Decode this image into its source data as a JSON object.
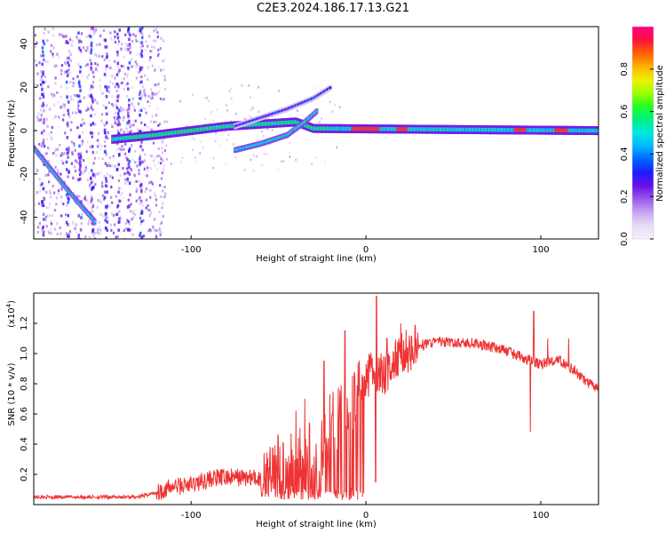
{
  "title": "C2E3.2024.186.17.13.G21",
  "colors": {
    "snr_line": "#ee3333",
    "axis": "#000000",
    "colormap": [
      "#f4f0f8",
      "#e8dcf6",
      "#c9a6f1",
      "#9b59ec",
      "#6a10e6",
      "#1d1cff",
      "#0066ff",
      "#00b8ff",
      "#00e8e0",
      "#00f080",
      "#22ff22",
      "#a0ff00",
      "#f0f000",
      "#ffb000",
      "#ff6000",
      "#ff1040",
      "#ff0080"
    ]
  },
  "chart_data": [
    {
      "type": "heatmap",
      "title": "C2E3.2024.186.17.13.G21",
      "xlabel": "Height of straight line (km)",
      "ylabel": "Frequency (Hz)",
      "xlim": [
        -190,
        133
      ],
      "ylim": [
        -50,
        48
      ],
      "x_ticks": [
        -100,
        0,
        100
      ],
      "x_tick_labels": [
        "-100",
        "0",
        "100"
      ],
      "y_ticks": [
        -40,
        -20,
        0,
        20,
        40
      ],
      "y_tick_labels": [
        "-40",
        "-20",
        "0",
        "20",
        "40"
      ],
      "colorbar": {
        "label": "Normalized spectral amplitude",
        "range": [
          0,
          1
        ],
        "ticks": [
          0.0,
          0.2,
          0.4,
          0.6,
          0.8
        ],
        "tick_labels": [
          "0.0",
          "0.2",
          "0.4",
          "0.6",
          "0.8"
        ]
      },
      "features": [
        {
          "name": "diagonal_line",
          "x": [
            -190,
            -170,
            -155
          ],
          "y": [
            -8,
            -28,
            -42
          ],
          "amplitude": 0.35
        },
        {
          "name": "central_band",
          "x": [
            -145,
            -120,
            -100,
            -80,
            -60,
            -40,
            -30,
            133
          ],
          "y": [
            -4,
            -2,
            0,
            2,
            3,
            4,
            1,
            0
          ],
          "amplitude": 0.4
        },
        {
          "name": "rising_branch",
          "x": [
            -75,
            -60,
            -45,
            -35,
            -28
          ],
          "y": [
            -9,
            -6,
            -2,
            4,
            9
          ],
          "amplitude": 0.35
        },
        {
          "name": "upper_branch",
          "x": [
            -75,
            -60,
            -45,
            -30,
            -20
          ],
          "y": [
            2,
            6,
            10,
            15,
            20
          ],
          "amplitude": 0.15
        }
      ]
    },
    {
      "type": "line",
      "title": "",
      "xlabel": "Height of straight line (km)",
      "ylabel": "SNR (10 * v/v)",
      "y_multiplier_label": "(x10",
      "y_multiplier_exp": "4",
      "y_multiplier_close": ")",
      "xlim": [
        -190,
        133
      ],
      "ylim": [
        0.0,
        1.4
      ],
      "x_ticks": [
        -100,
        0,
        100
      ],
      "x_tick_labels": [
        "-100",
        "0",
        "100"
      ],
      "y_ticks": [
        0.2,
        0.4,
        0.6,
        0.8,
        1.0,
        1.2
      ],
      "y_tick_labels": [
        "0.2",
        "0.4",
        "0.6",
        "0.8",
        "1.0",
        "1.2"
      ],
      "series": [
        {
          "x": [
            -190,
            -170,
            -150,
            -130,
            -120,
            -110,
            -100,
            -90,
            -80,
            -70,
            -60,
            -50,
            -45,
            -40,
            -35,
            -30,
            -25,
            -20,
            -15,
            -10,
            -5,
            0,
            5,
            10,
            15,
            20,
            30,
            40,
            50,
            60,
            70,
            80,
            90,
            95,
            100,
            110,
            115,
            120,
            125,
            133
          ],
          "y": [
            0.05,
            0.05,
            0.05,
            0.05,
            0.08,
            0.12,
            0.13,
            0.17,
            0.18,
            0.18,
            0.17,
            0.25,
            0.3,
            0.3,
            0.32,
            0.32,
            0.35,
            0.55,
            0.6,
            0.65,
            0.75,
            0.82,
            0.92,
            0.85,
            0.92,
            1.0,
            1.05,
            1.08,
            1.07,
            1.07,
            1.05,
            1.02,
            0.97,
            0.95,
            0.93,
            0.96,
            0.92,
            0.88,
            0.82,
            0.76
          ]
        }
      ],
      "spikes": [
        {
          "x": 6,
          "y": 1.38
        },
        {
          "x": 5.5,
          "y": 0.15
        },
        {
          "x": 20,
          "y": 1.2
        },
        {
          "x": 12,
          "y": 1.1
        },
        {
          "x": -12,
          "y": 1.15
        },
        {
          "x": -24,
          "y": 0.95
        },
        {
          "x": -40,
          "y": 0.62
        },
        {
          "x": -35,
          "y": 0.7
        },
        {
          "x": 94,
          "y": 1.27
        },
        {
          "x": 96,
          "y": 1.28
        },
        {
          "x": 94,
          "y": 0.48
        },
        {
          "x": 116,
          "y": 1.1
        },
        {
          "x": 104,
          "y": 1.1
        }
      ]
    }
  ]
}
